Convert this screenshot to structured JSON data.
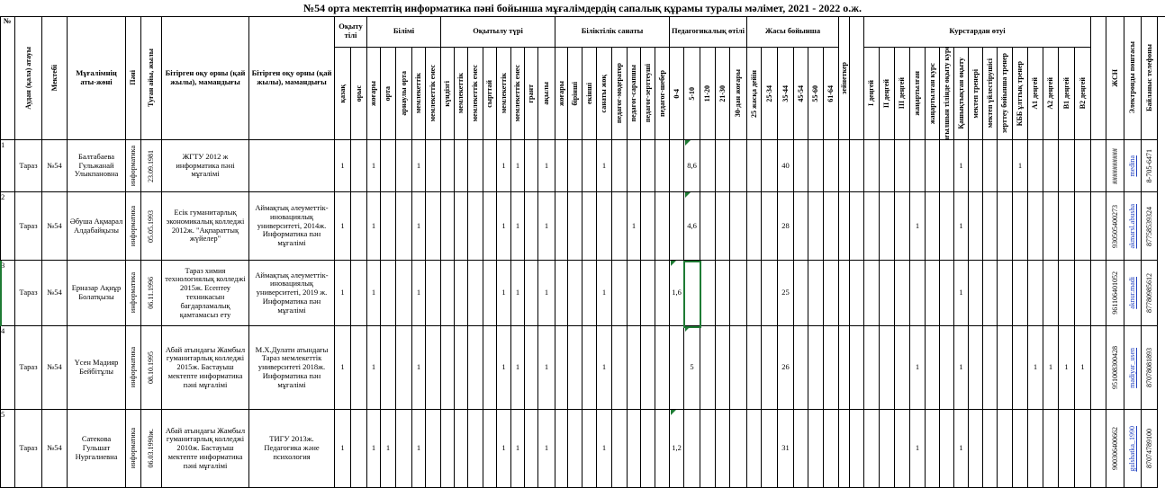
{
  "title": "№54 орта мектептің информатика пәні бойынша мұғалімдердің сапалық құрамы туралы мәлімет,  2021 - 2022 о.ж.",
  "headers": {
    "num": "№",
    "district": "Аудан (қала) атауы",
    "school": "Мектебі",
    "name": "Мұғалімнің аты-жөні",
    "subject": "Пәні",
    "birth": "Туған айы, жылы",
    "grad1": "Бітірген оқу орны (қай жылы), мамандығы",
    "grad2": "Бітірген оқу орны (қай жылы), мамандығы",
    "g_lang": "Оқыту тілі",
    "lang": [
      "қазақ",
      "орыс"
    ],
    "g_edu": "Білімі",
    "edu": [
      "жоғары",
      "орта",
      "арнаулы орта",
      "мемлекеттік",
      "мемлекеттік емес"
    ],
    "g_study": "Оқытылу түрі",
    "study": [
      "күндізгі",
      "мемлекеттік",
      "мемлекеттік емес",
      "сырттай",
      "мемлекеттік",
      "мемлекеттік емес",
      "грант",
      "ақылы"
    ],
    "g_cat": "Біліктілік санаты",
    "cat": [
      "жоғары",
      "бірінші",
      "екінші",
      "санаты жоқ",
      "педагог-модератор",
      "педагог-сарапшы",
      "педагог-зерттеуші",
      "педагог-шебер"
    ],
    "g_ped": "Педагогикалық өтілі",
    "ped": [
      "0-4",
      "5-10",
      "11-20",
      "21-30",
      "30-дан жоғары"
    ],
    "g_age": "Жасы бойынша",
    "age": [
      "25 жасқа  дейін",
      "25-34",
      "35-44",
      "45-54",
      "55-60",
      "61-64"
    ],
    "pension": "зейнеткер",
    "g_course": "Курстардан өтуі",
    "course": [
      "I деңгей",
      "II деңгей",
      "III деңгей",
      "жаңартылған",
      "жаңартылған курс",
      "ағылшын тілінде оқыту курс",
      "Қашықтықтан оқыту",
      "мектеп тренері",
      "мектеп үйлестірушісі",
      "зерттеу бойынша тренер",
      "КББ ұлттық тренер",
      "А1 деңгей",
      "А2 деңгей",
      "В1 деңгей",
      "В2 деңгей"
    ],
    "iin": "ЖСН",
    "email": "Электронды поштасы",
    "phone": "Байланыс телефоны"
  },
  "rows": [
    {
      "num": "1",
      "district": "Тараз",
      "school": "№54",
      "name": "Балтабаева Гульжанай Улыкпановна",
      "subject": "информатика",
      "birth": "23.09.1981",
      "grad1": "ЖГТУ 2012 ж информатика пәні мұғалімі",
      "grad2": "",
      "lang_kz": "1",
      "edu_high": "1",
      "edu_state": "1",
      "study_a": "1",
      "study_b": "1",
      "paid": "1",
      "cat_none": "1",
      "ped": "8,6",
      "age_col": "40",
      "course_dist": "1",
      "course_trainer": "1",
      "iin": "##########",
      "email": "medina",
      "phone": "8-705-6471"
    },
    {
      "num": "2",
      "district": "Тараз",
      "school": "№54",
      "name": "Әбуша Ақмарал Алдабайқызы",
      "subject": "информатика",
      "birth": "05.05.1993",
      "grad1": "Есік гуманитарлық экономикалық колледжі 2012ж. \"Ақпараттық жүйелер\"",
      "grad2": "Аймақтық әлеуметтік-иновациялық университеті, 2014ж. Информатика пән мұғалімі",
      "lang_kz": "1",
      "edu_high": "1",
      "edu_state": "1",
      "study_a": "1",
      "study_b": "1",
      "paid": "1",
      "cat_expert": "1",
      "ped": "4,6",
      "age_col": "28",
      "course_upd": "1",
      "course_dist": "1",
      "iin": "930505400273",
      "email": "akmarsl.abusha",
      "phone": "87758539324"
    },
    {
      "num": "3",
      "district": "Тараз",
      "school": "№54",
      "name": "Ерназар Ақнұр Болатқызы",
      "subject": "информатика",
      "birth": "06.11.1996",
      "grad1": "Тараз химия технологиялық колледжі 2015ж. Есептеу техникасын бағдарламалық қамтамасыз ету",
      "grad2": "Аймақтық әлеуметтік-иновациялық университеті, 2019 ж. Информатика пән мұғалімі",
      "lang_kz": "1",
      "edu_high": "1",
      "edu_state": "1",
      "study_a": "1",
      "study_b": "1",
      "paid": "1",
      "cat_none": "1",
      "ped": "1,6",
      "age_col": "25",
      "course_dist": "1",
      "iin": "961106401052",
      "email": "aknur.madi",
      "phone": "87780985612"
    },
    {
      "num": "4",
      "district": "Тараз",
      "school": "№54",
      "name": "Үсен Мадияр Бейбітұлы",
      "subject": "информатика",
      "birth": "08.10.1995",
      "grad1": "Абай атындағы Жамбыл гуманитарлық колледжі 2015ж. Бастауыш мектепте информатика пәні мұғалімі",
      "grad2": "М.Х.Дулати атындағы Тараз мемлекеттік университеті 2018ж. Информатика пән мұғалімі",
      "lang_kz": "1",
      "edu_high": "1",
      "edu_state": "1",
      "study_a": "1",
      "study_b": "1",
      "paid": "1",
      "cat_none": "1",
      "ped": "5",
      "age_col": "26",
      "course_upd": "1",
      "course_dist": "1",
      "course_a1": "1",
      "course_a2": "1",
      "course_b1": "1",
      "course_b2": "1",
      "iin": "951008300428",
      "email": "madiyar_usen",
      "phone": "87078081893"
    },
    {
      "num": "5",
      "district": "Тараз",
      "school": "№54",
      "name": "Сатекова Гульшат Нургалиевна",
      "subject": "информатика",
      "birth": "06.03.1990ж.",
      "grad1": "Абай атындағы Жамбыл гуманитарлық колледжі 2010ж. Бастауыш мектепте информатика пәні мұғалімі",
      "grad2": "ТИГУ 2013ж. Педагогика және психология",
      "lang_kz": "1",
      "edu_high": "1",
      "edu_mid": "1",
      "edu_state": "1",
      "study_a": "1",
      "study_b": "1",
      "paid": "1",
      "cat_none": "1",
      "ped": "1,2",
      "age_col": "31",
      "course_upd": "1",
      "course_dist": "1",
      "iin": "900306400662",
      "email": "gulshatka_1990",
      "phone": "87074789100"
    }
  ]
}
